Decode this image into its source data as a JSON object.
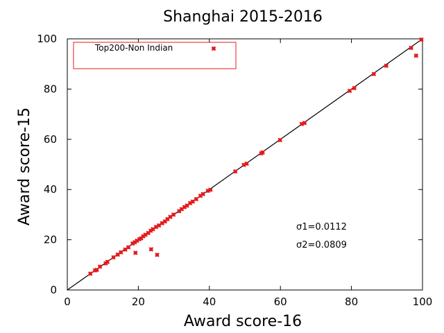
{
  "chart_data": {
    "type": "scatter",
    "title": "Shanghai 2015-2016",
    "xlabel": "Award score-16",
    "ylabel": "Award score-15",
    "xlim": [
      0,
      100
    ],
    "ylim": [
      0,
      100
    ],
    "xticks": [
      "0",
      "20",
      "40",
      "60",
      "80",
      "100"
    ],
    "yticks": [
      "0",
      "20",
      "40",
      "60",
      "80",
      "100"
    ],
    "grid": false,
    "legend_position": "top-left",
    "reference_line": "y = x",
    "series": [
      {
        "name": "Top200-Non Indian",
        "color": "#e41a1c",
        "marker": "x",
        "points": [
          [
            6.5,
            6.5
          ],
          [
            7.8,
            7.8
          ],
          [
            8.3,
            8.0
          ],
          [
            9.2,
            9.3
          ],
          [
            10.8,
            10.6
          ],
          [
            11.3,
            11.2
          ],
          [
            13.0,
            13.0
          ],
          [
            14.2,
            14.1
          ],
          [
            15.1,
            15.0
          ],
          [
            16.3,
            16.1
          ],
          [
            17.2,
            17.0
          ],
          [
            18.4,
            18.5
          ],
          [
            19.0,
            19.0
          ],
          [
            19.6,
            19.6
          ],
          [
            20.3,
            20.2
          ],
          [
            20.8,
            20.6
          ],
          [
            21.4,
            21.4
          ],
          [
            22.0,
            22.0
          ],
          [
            22.8,
            22.7
          ],
          [
            23.5,
            23.6
          ],
          [
            24.1,
            24.2
          ],
          [
            25.0,
            25.1
          ],
          [
            25.8,
            25.7
          ],
          [
            26.7,
            26.6
          ],
          [
            27.5,
            27.3
          ],
          [
            28.2,
            28.2
          ],
          [
            29.0,
            29.1
          ],
          [
            29.9,
            30.0
          ],
          [
            31.5,
            31.4
          ],
          [
            32.2,
            32.2
          ],
          [
            33.0,
            33.0
          ],
          [
            33.7,
            33.6
          ],
          [
            34.6,
            34.6
          ],
          [
            35.3,
            35.2
          ],
          [
            36.3,
            36.2
          ],
          [
            37.5,
            37.5
          ],
          [
            38.2,
            38.2
          ],
          [
            39.6,
            39.5
          ],
          [
            40.3,
            39.9
          ],
          [
            47.3,
            47.2
          ],
          [
            49.7,
            49.8
          ],
          [
            50.5,
            50.3
          ],
          [
            54.6,
            54.4
          ],
          [
            55.0,
            54.8
          ],
          [
            59.9,
            59.7
          ],
          [
            66.0,
            66.1
          ],
          [
            66.8,
            66.5
          ],
          [
            79.5,
            79.3
          ],
          [
            80.8,
            80.4
          ],
          [
            86.3,
            86.0
          ],
          [
            89.8,
            89.3
          ],
          [
            96.8,
            96.4
          ],
          [
            98.2,
            93.3
          ],
          [
            99.7,
            99.7
          ],
          [
            19.2,
            14.8
          ],
          [
            23.6,
            16.2
          ],
          [
            25.3,
            14.0
          ]
        ]
      }
    ],
    "annotations": [
      "σ1=0.0112",
      "σ2=0.0809"
    ]
  }
}
